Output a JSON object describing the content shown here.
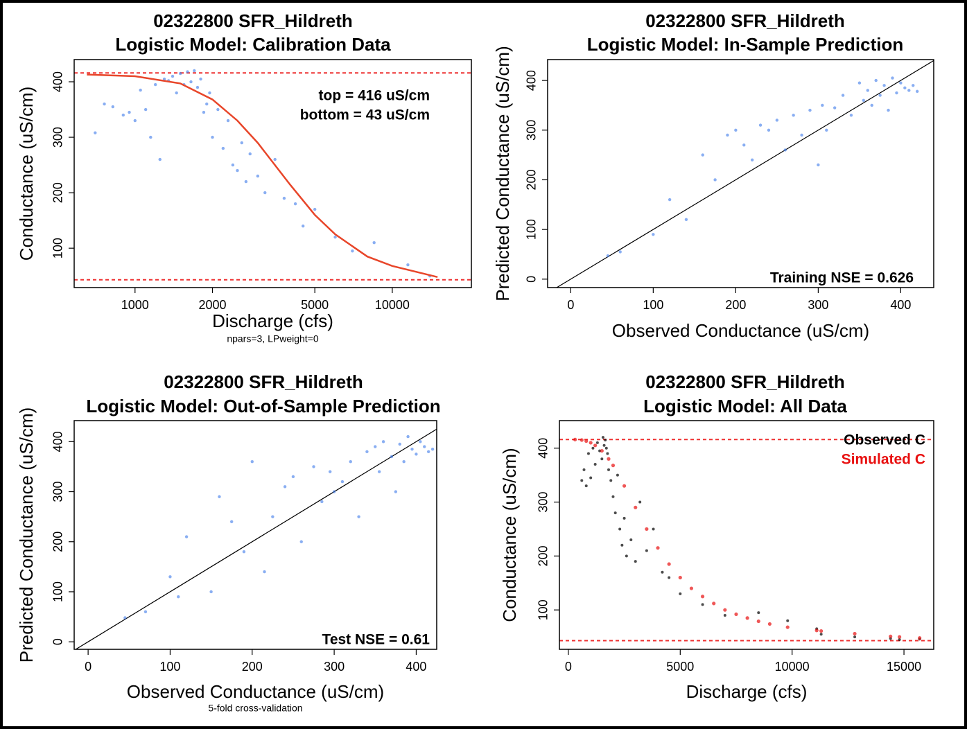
{
  "chart_data": [
    {
      "type": "scatter",
      "title": [
        "02322800 SFR_Hildreth",
        "Logistic Model: Calibration Data"
      ],
      "xlabel": "Discharge (cfs)",
      "ylabel": "Conductance (uS/cm)",
      "note": "npars=3, LPweight=0",
      "annotations": [
        "top = 416 uS/cm",
        "bottom = 43 uS/cm"
      ],
      "xscale": "log",
      "xlim": [
        580,
        20300
      ],
      "xticks": [
        1000,
        2000,
        5000,
        10000
      ],
      "ylim": [
        29,
        440
      ],
      "yticks": [
        100,
        200,
        300,
        400
      ],
      "color": "#3b78ea",
      "x": [
        700,
        760,
        820,
        900,
        950,
        1000,
        1050,
        1100,
        1150,
        1200,
        1250,
        1300,
        1350,
        1400,
        1450,
        1500,
        1550,
        1600,
        1650,
        1700,
        1750,
        1800,
        1850,
        1900,
        1950,
        2000,
        2100,
        2200,
        2300,
        2400,
        2500,
        2600,
        2700,
        2800,
        3000,
        3200,
        3500,
        3800,
        4200,
        4500,
        5000,
        6000,
        7000,
        8500,
        11500,
        14000
      ],
      "values": [
        308,
        360,
        355,
        340,
        345,
        330,
        385,
        350,
        300,
        395,
        260,
        405,
        402,
        410,
        380,
        415,
        395,
        418,
        400,
        420,
        390,
        405,
        345,
        360,
        380,
        300,
        350,
        280,
        330,
        250,
        240,
        290,
        220,
        270,
        230,
        200,
        260,
        190,
        180,
        140,
        170,
        120,
        95,
        110,
        70,
        50
      ],
      "curve": {
        "color": "#e8462a",
        "x": [
          650,
          1000,
          1500,
          2000,
          2500,
          3000,
          4000,
          5000,
          6000,
          8000,
          10000,
          15000
        ],
        "values": [
          413,
          410,
          397,
          368,
          330,
          290,
          215,
          160,
          125,
          85,
          68,
          48
        ]
      },
      "reference_lines": [
        416,
        43
      ],
      "reference_color": "#ee3030"
    },
    {
      "type": "scatter",
      "title": [
        "02322800 SFR_Hildreth",
        "Logistic Model: In-Sample Prediction"
      ],
      "xlabel": "Observed Conductance (uS/cm)",
      "ylabel": "Predicted Conductance (uS/cm)",
      "annotations": [
        "Training NSE = 0.626"
      ],
      "xlim": [
        -28,
        440
      ],
      "xticks": [
        0,
        100,
        200,
        300,
        400
      ],
      "ylim": [
        -17,
        442
      ],
      "yticks": [
        0,
        100,
        200,
        300,
        400
      ],
      "identity_line": true,
      "color": "#3b78ea",
      "x": [
        45,
        60,
        100,
        120,
        140,
        160,
        175,
        190,
        200,
        210,
        220,
        230,
        240,
        250,
        260,
        270,
        280,
        290,
        300,
        305,
        310,
        320,
        330,
        340,
        350,
        355,
        360,
        365,
        370,
        375,
        380,
        385,
        390,
        395,
        400,
        405,
        410,
        415,
        420
      ],
      "values": [
        47,
        55,
        90,
        160,
        120,
        250,
        200,
        290,
        300,
        270,
        240,
        310,
        300,
        320,
        260,
        330,
        290,
        340,
        230,
        350,
        300,
        345,
        370,
        330,
        395,
        360,
        380,
        350,
        400,
        370,
        390,
        340,
        405,
        375,
        395,
        385,
        380,
        390,
        378
      ]
    },
    {
      "type": "scatter",
      "title": [
        "02322800 SFR_Hildreth",
        "Logistic Model: Out-of-Sample Prediction"
      ],
      "xlabel": "Observed Conductance (uS/cm)",
      "ylabel": "Predicted Conductance (uS/cm)",
      "note": "5-fold cross-validation",
      "annotations": [
        "Test NSE = 0.61"
      ],
      "xlim": [
        -17,
        425
      ],
      "xticks": [
        0,
        100,
        200,
        300,
        400
      ],
      "ylim": [
        -15,
        442
      ],
      "yticks": [
        0,
        100,
        200,
        300,
        400
      ],
      "identity_line": true,
      "color": "#3b78ea",
      "x": [
        45,
        70,
        100,
        110,
        120,
        150,
        160,
        175,
        190,
        200,
        215,
        225,
        240,
        250,
        260,
        275,
        285,
        295,
        300,
        310,
        320,
        330,
        340,
        350,
        355,
        360,
        370,
        375,
        380,
        385,
        390,
        395,
        400,
        405,
        410,
        415,
        420
      ],
      "values": [
        48,
        60,
        130,
        90,
        210,
        100,
        290,
        240,
        180,
        360,
        140,
        250,
        310,
        330,
        200,
        350,
        280,
        340,
        300,
        320,
        360,
        250,
        380,
        390,
        340,
        400,
        370,
        300,
        395,
        360,
        410,
        385,
        375,
        400,
        390,
        380,
        385
      ]
    },
    {
      "type": "scatter",
      "title": [
        "02322800 SFR_Hildreth",
        "Logistic Model: All Data"
      ],
      "xlabel": "Discharge (cfs)",
      "ylabel": "Conductance (uS/cm)",
      "xlim": [
        -400,
        16330
      ],
      "xticks": [
        0,
        5000,
        10000,
        15000
      ],
      "ylim": [
        27,
        451
      ],
      "yticks": [
        100,
        200,
        300,
        400
      ],
      "reference_lines": [
        416,
        43
      ],
      "reference_color": "#ee3030",
      "series": [
        {
          "name": "Observed C",
          "color": "#000000",
          "x": [
            600,
            700,
            800,
            900,
            1000,
            1100,
            1200,
            1300,
            1400,
            1500,
            1550,
            1600,
            1650,
            1700,
            1750,
            1800,
            1900,
            2000,
            2100,
            2200,
            2300,
            2400,
            2500,
            2600,
            2800,
            3000,
            3200,
            3500,
            3800,
            4200,
            4500,
            5000,
            6000,
            7000,
            8500,
            9800,
            11100,
            11300,
            12800,
            14400,
            14800,
            15700
          ],
          "values": [
            340,
            360,
            330,
            390,
            345,
            400,
            370,
            410,
            395,
            380,
            420,
            405,
            415,
            400,
            390,
            360,
            340,
            310,
            280,
            350,
            250,
            220,
            270,
            200,
            230,
            190,
            300,
            210,
            250,
            170,
            160,
            130,
            110,
            90,
            95,
            80,
            65,
            55,
            50,
            47,
            45,
            46
          ]
        },
        {
          "name": "Simulated C",
          "color": "#e81010",
          "x": [
            300,
            600,
            800,
            1000,
            1200,
            1500,
            1800,
            2000,
            2500,
            3000,
            3500,
            4000,
            4500,
            5000,
            5500,
            6000,
            6500,
            7000,
            7500,
            8000,
            8500,
            9000,
            9800,
            11100,
            11300,
            12800,
            14400,
            14800,
            15700
          ],
          "values": [
            416,
            415,
            413,
            410,
            405,
            395,
            380,
            368,
            330,
            290,
            250,
            215,
            185,
            160,
            140,
            125,
            112,
            100,
            92,
            85,
            79,
            74,
            68,
            62,
            61,
            56,
            51,
            50,
            48
          ]
        }
      ]
    }
  ]
}
